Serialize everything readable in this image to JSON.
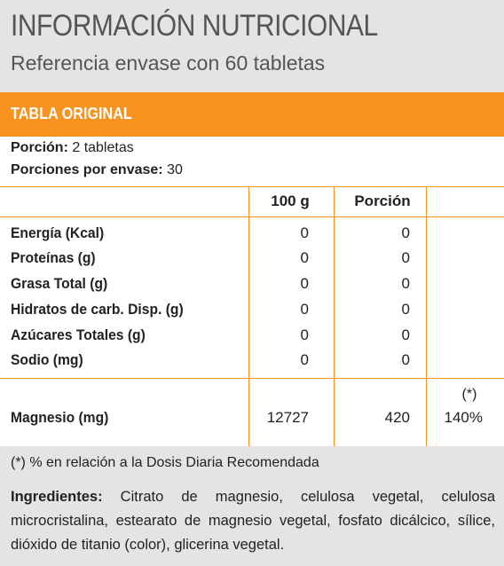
{
  "header": {
    "title": "INFORMACIÓN NUTRICIONAL",
    "subtitle": "Referencia envase con 60 tabletas"
  },
  "band": {
    "label": "TABLA ORIGINAL"
  },
  "serving": {
    "portion_label": "Porción:",
    "portion_value": "2 tabletas",
    "per_pack_label": "Porciones por envase:",
    "per_pack_value": "30"
  },
  "columns": {
    "per100": "100 g",
    "portion": "Porción"
  },
  "rows": [
    {
      "label": "Energía (Kcal)",
      "per100": "0",
      "portion": "0"
    },
    {
      "label": "Proteínas (g)",
      "per100": "0",
      "portion": "0"
    },
    {
      "label": "Grasa Total (g)",
      "per100": "0",
      "portion": "0"
    },
    {
      "label": "Hidratos de carb. Disp. (g)",
      "per100": "0",
      "portion": "0"
    },
    {
      "label": "Azúcares Totales (g)",
      "per100": "0",
      "portion": "0"
    },
    {
      "label": "Sodio (mg)",
      "per100": "0",
      "portion": "0"
    }
  ],
  "magnesium": {
    "label": "Magnesio (mg)",
    "per100": "12727",
    "portion": "420",
    "dd_marker": "(*)",
    "dd_value": "140%"
  },
  "footer": {
    "note": "(*) % en relación a la Dosis Diaria Recomendada",
    "ingredients_label": "Ingredientes:",
    "ingredients_text": " Citrato de magnesio, celulosa vegetal, celulosa microcristalina, estearato de magnesio vegetal, fosfato dicálcico, sílice, dióxido de titanio (color), glicerina vegetal."
  },
  "colors": {
    "accent": "#f7931e",
    "panel": "#e4e4e4"
  }
}
